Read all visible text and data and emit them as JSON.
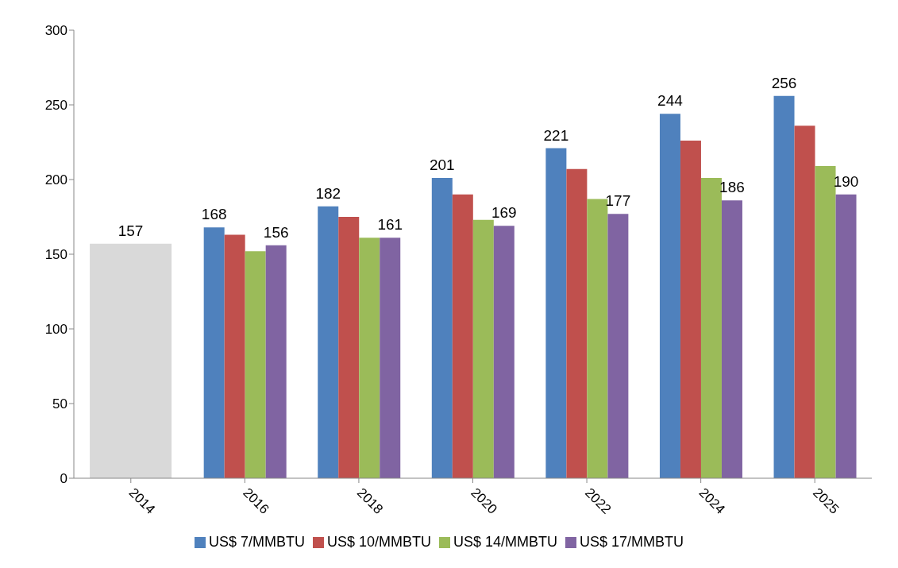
{
  "chart_data": {
    "type": "bar",
    "categories": [
      "2014",
      "2016",
      "2018",
      "2020",
      "2022",
      "2024",
      "2025"
    ],
    "series": [
      {
        "color": "#d9d9d9",
        "values": [
          157,
          null,
          null,
          null,
          null,
          null,
          null
        ],
        "value_labels": [
          "157",
          null,
          null,
          null,
          null,
          null,
          null
        ]
      },
      {
        "name": "US$ 7/MMBTU",
        "color": "#4f81bd",
        "values": [
          null,
          168,
          182,
          201,
          221,
          244,
          256
        ],
        "value_labels": [
          null,
          "168",
          "182",
          "201",
          "221",
          "244",
          "256"
        ]
      },
      {
        "name": "US$ 10/MMBTU",
        "color": "#c0504d",
        "values": [
          null,
          163,
          175,
          190,
          207,
          226,
          236
        ]
      },
      {
        "name": "US$ 14/MMBTU",
        "color": "#9bbb59",
        "values": [
          null,
          152,
          161,
          173,
          187,
          201,
          209
        ]
      },
      {
        "name": "US$ 17/MMBTU",
        "color": "#8064a2",
        "values": [
          null,
          156,
          161,
          169,
          177,
          186,
          190
        ],
        "value_labels": [
          null,
          "156",
          "161",
          "169",
          "177",
          "186",
          "190"
        ]
      }
    ],
    "ylim": [
      0,
      300
    ],
    "yticks": [
      0,
      50,
      100,
      150,
      200,
      250,
      300
    ],
    "grid": false,
    "legend": "bottom"
  }
}
